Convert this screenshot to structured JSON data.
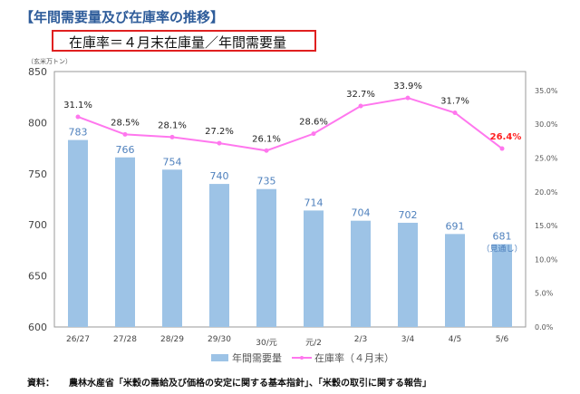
{
  "title": "【年間需要量及び在庫率の推移】",
  "formula": "在庫率＝４月末在庫量／年間需要量",
  "source_label": "資料：",
  "source_text": "農林水産省「米穀の需給及び価格の安定に関する基本指針」、「米穀の取引に関する報告」",
  "chart_data": {
    "type": "bar+line",
    "ylabel": "（玄米万トン）",
    "categories": [
      "26/27",
      "27/28",
      "28/29",
      "29/30",
      "30/元",
      "元/2",
      "2/3",
      "3/4",
      "4/5",
      "5/6"
    ],
    "ylim": [
      600,
      850
    ],
    "yticks": [
      600,
      650,
      700,
      750,
      800,
      850
    ],
    "y2lim": [
      0,
      37.8
    ],
    "y2ticks": [
      "0.0%",
      "5.0%",
      "10.0%",
      "15.0%",
      "20.0%",
      "25.0%",
      "30.0%",
      "35.0%"
    ],
    "series": [
      {
        "name": "年間需要量",
        "type": "bar",
        "color": "#9dc3e6",
        "label_color": "#4f81bd",
        "values": [
          783,
          766,
          754,
          740,
          735,
          714,
          704,
          702,
          691,
          681
        ],
        "labels": [
          "783",
          "766",
          "754",
          "740",
          "735",
          "714",
          "704",
          "702",
          "691",
          "681"
        ]
      },
      {
        "name": "在庫率（４月末）",
        "type": "line",
        "axis": "right",
        "color": "#ff77ee",
        "values": [
          31.1,
          28.5,
          28.1,
          27.2,
          26.1,
          28.6,
          32.7,
          33.9,
          31.7,
          26.4
        ],
        "labels": [
          "31.1%",
          "28.5%",
          "28.1%",
          "27.2%",
          "26.1%",
          "28.6%",
          "32.7%",
          "33.9%",
          "31.7%",
          "26.4%"
        ]
      }
    ],
    "annotation": "（見通し）",
    "highlight_color": "#ff2020",
    "legend_placement": "bottom-center"
  }
}
